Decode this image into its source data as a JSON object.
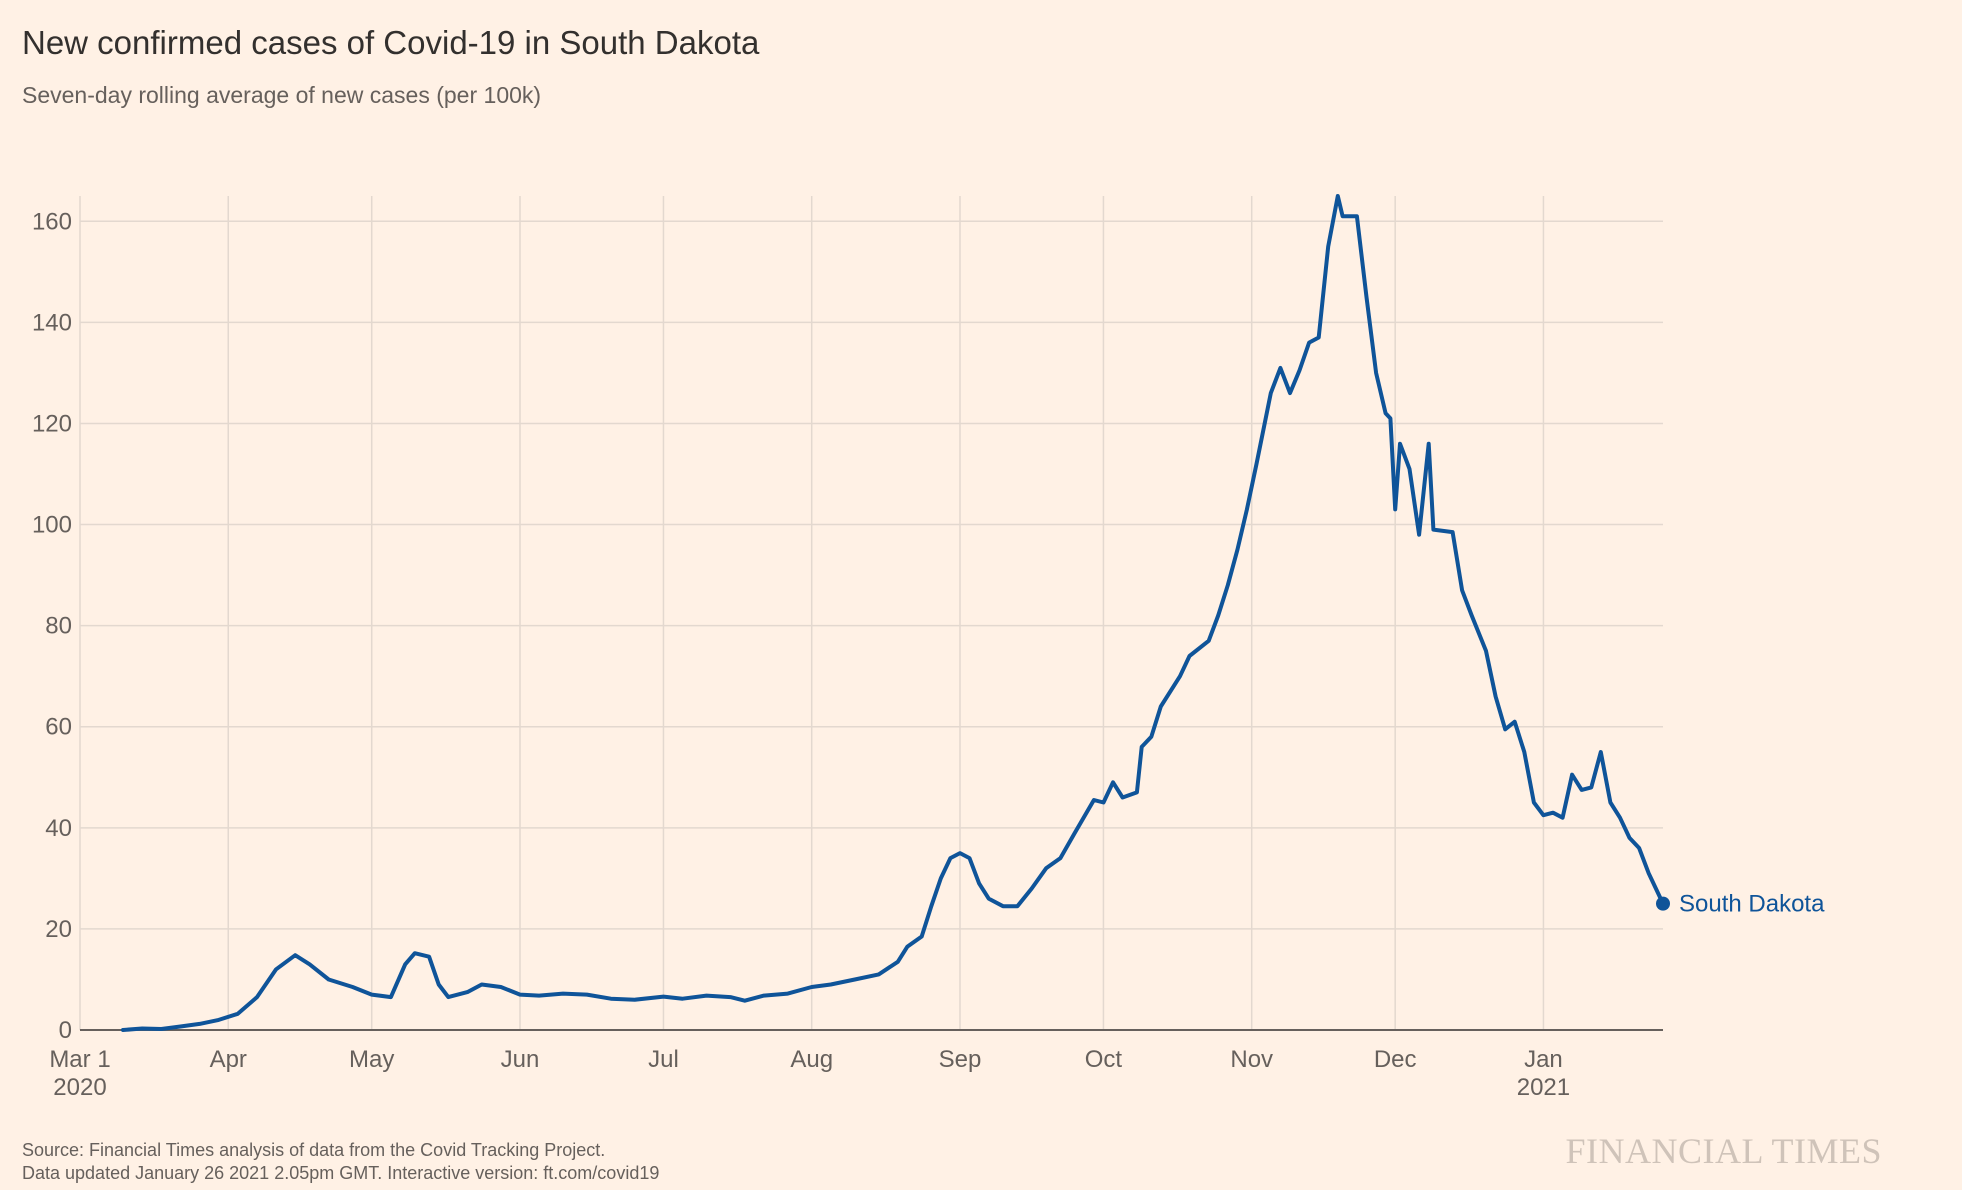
{
  "header": {
    "title": "New confirmed cases of Covid-19 in South Dakota",
    "subtitle": "Seven-day rolling average of new cases (per 100k)"
  },
  "footer": {
    "source_line1": "Source: Financial Times analysis of data from the Covid Tracking Project.",
    "source_line2": "Data updated January 26 2021 2.05pm GMT. Interactive version: ft.com/covid19",
    "brand": "FINANCIAL TIMES"
  },
  "colors": {
    "background": "#fff1e5",
    "line": "#0f5499",
    "grid": "#e3d8cf",
    "axis": "#66605c"
  },
  "chart_data": {
    "type": "line",
    "title": "New confirmed cases of Covid-19 in South Dakota",
    "subtitle": "Seven-day rolling average of new cases (per 100k)",
    "xlabel": "",
    "ylabel": "",
    "ylim": [
      0,
      165
    ],
    "xlim": [
      "2020-03-01",
      "2021-01-26"
    ],
    "yticks": [
      0,
      20,
      40,
      60,
      80,
      100,
      120,
      140,
      160
    ],
    "xticks": [
      {
        "date": "2020-03-01",
        "label": "Mar 1",
        "sublabel": "2020"
      },
      {
        "date": "2020-04-01",
        "label": "Apr",
        "sublabel": ""
      },
      {
        "date": "2020-05-01",
        "label": "May",
        "sublabel": ""
      },
      {
        "date": "2020-06-01",
        "label": "Jun",
        "sublabel": ""
      },
      {
        "date": "2020-07-01",
        "label": "Jul",
        "sublabel": ""
      },
      {
        "date": "2020-08-01",
        "label": "Aug",
        "sublabel": ""
      },
      {
        "date": "2020-09-01",
        "label": "Sep",
        "sublabel": ""
      },
      {
        "date": "2020-10-01",
        "label": "Oct",
        "sublabel": ""
      },
      {
        "date": "2020-11-01",
        "label": "Nov",
        "sublabel": ""
      },
      {
        "date": "2020-12-01",
        "label": "Dec",
        "sublabel": ""
      },
      {
        "date": "2021-01-01",
        "label": "Jan",
        "sublabel": "2021"
      }
    ],
    "grid": true,
    "series": [
      {
        "name": "South Dakota",
        "color": "#0f5499",
        "points": [
          [
            "2020-03-10",
            0
          ],
          [
            "2020-03-14",
            0.3
          ],
          [
            "2020-03-18",
            0.2
          ],
          [
            "2020-03-22",
            0.7
          ],
          [
            "2020-03-26",
            1.2
          ],
          [
            "2020-03-30",
            2.0
          ],
          [
            "2020-04-03",
            3.2
          ],
          [
            "2020-04-07",
            6.5
          ],
          [
            "2020-04-11",
            12.0
          ],
          [
            "2020-04-15",
            14.8
          ],
          [
            "2020-04-18",
            13.0
          ],
          [
            "2020-04-22",
            10.0
          ],
          [
            "2020-04-27",
            8.5
          ],
          [
            "2020-05-01",
            7.0
          ],
          [
            "2020-05-05",
            6.5
          ],
          [
            "2020-05-08",
            13.0
          ],
          [
            "2020-05-10",
            15.2
          ],
          [
            "2020-05-13",
            14.5
          ],
          [
            "2020-05-15",
            9.0
          ],
          [
            "2020-05-17",
            6.5
          ],
          [
            "2020-05-21",
            7.5
          ],
          [
            "2020-05-24",
            9.0
          ],
          [
            "2020-05-28",
            8.5
          ],
          [
            "2020-06-01",
            7.0
          ],
          [
            "2020-06-05",
            6.8
          ],
          [
            "2020-06-10",
            7.2
          ],
          [
            "2020-06-15",
            7.0
          ],
          [
            "2020-06-20",
            6.2
          ],
          [
            "2020-06-25",
            6.0
          ],
          [
            "2020-07-01",
            6.6
          ],
          [
            "2020-07-05",
            6.2
          ],
          [
            "2020-07-10",
            6.8
          ],
          [
            "2020-07-15",
            6.5
          ],
          [
            "2020-07-18",
            5.8
          ],
          [
            "2020-07-22",
            6.8
          ],
          [
            "2020-07-27",
            7.2
          ],
          [
            "2020-08-01",
            8.5
          ],
          [
            "2020-08-05",
            9.0
          ],
          [
            "2020-08-10",
            10.0
          ],
          [
            "2020-08-15",
            11.0
          ],
          [
            "2020-08-19",
            13.5
          ],
          [
            "2020-08-21",
            16.5
          ],
          [
            "2020-08-24",
            18.5
          ],
          [
            "2020-08-26",
            24.5
          ],
          [
            "2020-08-28",
            30.0
          ],
          [
            "2020-08-30",
            34.0
          ],
          [
            "2020-09-01",
            35.0
          ],
          [
            "2020-09-03",
            34.0
          ],
          [
            "2020-09-05",
            29.0
          ],
          [
            "2020-09-07",
            26.0
          ],
          [
            "2020-09-10",
            24.5
          ],
          [
            "2020-09-13",
            24.5
          ],
          [
            "2020-09-16",
            28.0
          ],
          [
            "2020-09-19",
            32.0
          ],
          [
            "2020-09-22",
            34.0
          ],
          [
            "2020-09-25",
            39.0
          ],
          [
            "2020-09-29",
            45.5
          ],
          [
            "2020-10-01",
            45.0
          ],
          [
            "2020-10-03",
            49.0
          ],
          [
            "2020-10-05",
            46.0
          ],
          [
            "2020-10-08",
            47.0
          ],
          [
            "2020-10-09",
            56.0
          ],
          [
            "2020-10-11",
            58.0
          ],
          [
            "2020-10-13",
            64.0
          ],
          [
            "2020-10-17",
            70.0
          ],
          [
            "2020-10-19",
            74.0
          ],
          [
            "2020-10-23",
            77.0
          ],
          [
            "2020-10-25",
            82.0
          ],
          [
            "2020-10-27",
            88.0
          ],
          [
            "2020-10-29",
            95.0
          ],
          [
            "2020-10-31",
            103.0
          ],
          [
            "2020-11-02",
            112.0
          ],
          [
            "2020-11-05",
            126.0
          ],
          [
            "2020-11-07",
            131.0
          ],
          [
            "2020-11-09",
            126.0
          ],
          [
            "2020-11-11",
            130.5
          ],
          [
            "2020-11-13",
            136.0
          ],
          [
            "2020-11-15",
            137.0
          ],
          [
            "2020-11-17",
            155.0
          ],
          [
            "2020-11-19",
            165.0
          ],
          [
            "2020-11-20",
            161.0
          ],
          [
            "2020-11-23",
            161.0
          ],
          [
            "2020-11-25",
            145.0
          ],
          [
            "2020-11-27",
            130.0
          ],
          [
            "2020-11-29",
            122.0
          ],
          [
            "2020-11-30",
            121.0
          ],
          [
            "2020-12-01",
            103.0
          ],
          [
            "2020-12-02",
            116.0
          ],
          [
            "2020-12-04",
            111.0
          ],
          [
            "2020-12-06",
            98.0
          ],
          [
            "2020-12-08",
            116.0
          ],
          [
            "2020-12-09",
            99.0
          ],
          [
            "2020-12-13",
            98.5
          ],
          [
            "2020-12-15",
            87.0
          ],
          [
            "2020-12-17",
            82.0
          ],
          [
            "2020-12-20",
            75.0
          ],
          [
            "2020-12-22",
            66.0
          ],
          [
            "2020-12-24",
            59.5
          ],
          [
            "2020-12-26",
            61.0
          ],
          [
            "2020-12-28",
            55.0
          ],
          [
            "2020-12-30",
            45.0
          ],
          [
            "2021-01-01",
            42.5
          ],
          [
            "2021-01-03",
            43.0
          ],
          [
            "2021-01-05",
            42.0
          ],
          [
            "2021-01-07",
            50.5
          ],
          [
            "2021-01-09",
            47.5
          ],
          [
            "2021-01-11",
            48.0
          ],
          [
            "2021-01-13",
            55.0
          ],
          [
            "2021-01-15",
            45.0
          ],
          [
            "2021-01-17",
            42.0
          ],
          [
            "2021-01-19",
            38.0
          ],
          [
            "2021-01-21",
            36.0
          ],
          [
            "2021-01-23",
            31.0
          ],
          [
            "2021-01-26",
            25.0
          ]
        ]
      }
    ]
  }
}
